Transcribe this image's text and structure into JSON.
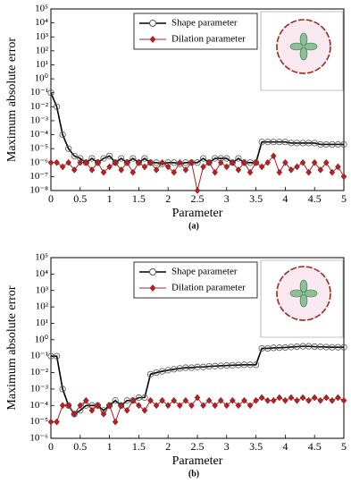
{
  "chart_data": [
    {
      "type": "line",
      "caption": "(a)",
      "xlabel": "Parameter",
      "ylabel": "Maximum absolute error",
      "ylog": true,
      "legend": "upper center",
      "xlim": [
        0,
        5
      ],
      "xticks": [
        0,
        0.5,
        1,
        1.5,
        2,
        2.5,
        3,
        3.5,
        4,
        4.5,
        5
      ],
      "ylim": [
        1e-08,
        100000
      ],
      "yticks": [
        {
          "value": 1e-08,
          "label": "10⁻⁸"
        },
        {
          "value": 1e-07,
          "label": "10⁻⁷"
        },
        {
          "value": 1e-06,
          "label": "10⁻⁶"
        },
        {
          "value": 1e-05,
          "label": "10⁻⁵"
        },
        {
          "value": 0.0001,
          "label": "10⁻⁴"
        },
        {
          "value": 0.001,
          "label": "10⁻³"
        },
        {
          "value": 0.01,
          "label": "10⁻²"
        },
        {
          "value": 0.1,
          "label": "10⁻¹"
        },
        {
          "value": 1,
          "label": "10⁰"
        },
        {
          "value": 10,
          "label": "10¹"
        },
        {
          "value": 100,
          "label": "10²"
        },
        {
          "value": 1000,
          "label": "10³"
        },
        {
          "value": 10000,
          "label": "10⁴"
        },
        {
          "value": 100000,
          "label": "10⁵"
        }
      ],
      "x": [
        0,
        0.1,
        0.2,
        0.3,
        0.4,
        0.5,
        0.6,
        0.7,
        0.8,
        0.9,
        1,
        1.1,
        1.2,
        1.3,
        1.4,
        1.5,
        1.6,
        1.7,
        1.8,
        1.9,
        2,
        2.1,
        2.2,
        2.3,
        2.4,
        2.5,
        2.6,
        2.7,
        2.8,
        2.9,
        3,
        3.1,
        3.2,
        3.3,
        3.4,
        3.5,
        3.6,
        3.7,
        3.8,
        3.9,
        4,
        4.1,
        4.2,
        4.3,
        4.4,
        4.5,
        4.6,
        4.7,
        4.8,
        4.9,
        5
      ],
      "series": [
        {
          "name": "Shape parameter",
          "color": "#000000",
          "marker": "circle",
          "values": [
            0.1,
            0.01,
            0.0001,
            1e-05,
            3e-06,
            2e-06,
            1e-06,
            2e-06,
            1e-06,
            2e-06,
            3e-06,
            1e-06,
            2e-06,
            1e-06,
            2e-06,
            1e-06,
            2e-06,
            1e-06,
            1e-06,
            8e-07,
            1e-06,
            1e-06,
            8e-07,
            1e-06,
            1e-06,
            1e-06,
            2e-06,
            1e-06,
            2e-06,
            2e-06,
            2e-06,
            1e-06,
            2e-06,
            1e-06,
            1e-06,
            1e-06,
            3e-05,
            3e-05,
            3e-05,
            3e-05,
            3e-05,
            2.5e-05,
            2.5e-05,
            2.5e-05,
            2.5e-05,
            2.5e-05,
            2e-05,
            2e-05,
            2e-05,
            2e-05,
            2e-05
          ]
        },
        {
          "name": "Dilation parameter",
          "color": "#b22222",
          "marker": "diamond",
          "values": [
            1e-06,
            1e-06,
            5e-07,
            1e-06,
            3e-07,
            1e-06,
            1e-06,
            3e-07,
            1e-06,
            2e-07,
            5e-07,
            1e-06,
            3e-07,
            1e-06,
            2e-07,
            1e-06,
            5e-07,
            1e-06,
            3e-07,
            1e-06,
            5e-07,
            2e-07,
            1e-06,
            3e-07,
            1e-06,
            1e-08,
            5e-07,
            1e-06,
            2e-07,
            1e-06,
            5e-07,
            1e-06,
            3e-07,
            1e-06,
            2e-07,
            1e-06,
            5e-07,
            1e-06,
            3e-06,
            2e-07,
            1e-06,
            3e-07,
            5e-07,
            1e-06,
            2e-07,
            1e-06,
            3e-07,
            1e-06,
            2e-07,
            5e-07,
            1e-07
          ]
        }
      ]
    },
    {
      "type": "line",
      "caption": "(b)",
      "xlabel": "Parameter",
      "ylabel": "Maximum absolute error",
      "ylog": true,
      "legend": "upper center",
      "xlim": [
        0,
        5
      ],
      "xticks": [
        0,
        0.5,
        1,
        1.5,
        2,
        2.5,
        3,
        3.5,
        4,
        4.5,
        5
      ],
      "ylim": [
        1e-06,
        100000
      ],
      "yticks": [
        {
          "value": 1e-06,
          "label": "10⁻⁶"
        },
        {
          "value": 1e-05,
          "label": "10⁻⁵"
        },
        {
          "value": 0.0001,
          "label": "10⁻⁴"
        },
        {
          "value": 0.001,
          "label": "10⁻³"
        },
        {
          "value": 0.01,
          "label": "10⁻²"
        },
        {
          "value": 0.1,
          "label": "10⁻¹"
        },
        {
          "value": 1,
          "label": "10⁰"
        },
        {
          "value": 10,
          "label": "10¹"
        },
        {
          "value": 100,
          "label": "10²"
        },
        {
          "value": 1000,
          "label": "10³"
        },
        {
          "value": 10000,
          "label": "10⁴"
        },
        {
          "value": 100000,
          "label": "10⁵"
        }
      ],
      "x": [
        0,
        0.1,
        0.2,
        0.3,
        0.4,
        0.5,
        0.6,
        0.7,
        0.8,
        0.9,
        1,
        1.1,
        1.2,
        1.3,
        1.4,
        1.5,
        1.6,
        1.7,
        1.8,
        1.9,
        2,
        2.1,
        2.2,
        2.3,
        2.4,
        2.5,
        2.6,
        2.7,
        2.8,
        2.9,
        3,
        3.1,
        3.2,
        3.3,
        3.4,
        3.5,
        3.6,
        3.7,
        3.8,
        3.9,
        4,
        4.1,
        4.2,
        4.3,
        4.4,
        4.5,
        4.6,
        4.7,
        4.8,
        4.9,
        5
      ],
      "series": [
        {
          "name": "Shape parameter",
          "color": "#000000",
          "marker": "circle",
          "values": [
            0.1,
            0.1,
            0.001,
            0.0001,
            3e-05,
            5e-05,
            0.0001,
            0.0001,
            0.0001,
            5e-05,
            0.0001,
            0.0002,
            0.0001,
            0.0002,
            0.0002,
            0.0003,
            0.0003,
            0.008,
            0.01,
            0.012,
            0.014,
            0.016,
            0.018,
            0.02,
            0.02,
            0.022,
            0.022,
            0.024,
            0.025,
            0.026,
            0.027,
            0.028,
            0.029,
            0.03,
            0.03,
            0.03,
            0.3,
            0.3,
            0.32,
            0.33,
            0.34,
            0.36,
            0.38,
            0.4,
            0.4,
            0.38,
            0.37,
            0.36,
            0.35,
            0.35,
            0.35
          ]
        },
        {
          "name": "Dilation parameter",
          "color": "#b22222",
          "marker": "diamond",
          "values": [
            1e-05,
            1e-05,
            0.0001,
            0.0001,
            3e-05,
            0.0001,
            0.0002,
            5e-05,
            0.0001,
            3e-05,
            0.0001,
            1e-05,
            0.0001,
            5e-05,
            0.0002,
            0.0001,
            5e-05,
            0.0002,
            0.0001,
            0.0002,
            0.0001,
            0.0002,
            0.0001,
            0.0002,
            0.0001,
            0.0003,
            0.0001,
            0.0002,
            0.0001,
            0.0002,
            0.0001,
            0.0002,
            0.0001,
            0.0002,
            0.0001,
            0.0002,
            0.0003,
            0.0002,
            0.0002,
            0.0003,
            0.0002,
            0.0003,
            0.0002,
            0.0003,
            0.0002,
            0.0003,
            0.0002,
            0.0003,
            0.0002,
            0.0003,
            0.0002
          ]
        }
      ]
    }
  ]
}
